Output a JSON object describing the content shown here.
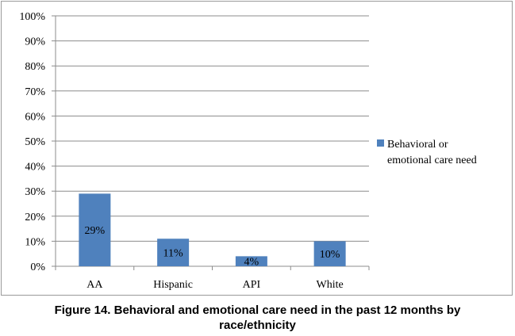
{
  "chart_data": {
    "type": "bar",
    "categories": [
      "AA",
      "Hispanic",
      "API",
      "White"
    ],
    "series": [
      {
        "name": "Behavioral or emotional care need",
        "values": [
          29,
          11,
          4,
          10
        ],
        "labels": [
          "29%",
          "11%",
          "4%",
          "10%"
        ],
        "color": "#4f81bd"
      }
    ],
    "ylim": [
      0,
      100
    ],
    "yticks": [
      0,
      10,
      20,
      30,
      40,
      50,
      60,
      70,
      80,
      90,
      100
    ],
    "ytick_labels": [
      "0%",
      "10%",
      "20%",
      "30%",
      "40%",
      "50%",
      "60%",
      "70%",
      "80%",
      "90%",
      "100%"
    ],
    "grid": true,
    "legend_position": "right",
    "legend_lines": [
      "Behavioral or",
      "emotional care need"
    ]
  },
  "caption": {
    "line1": "Figure 14. Behavioral and emotional care need in the past 12 months by",
    "line2": "race/ethnicity"
  }
}
